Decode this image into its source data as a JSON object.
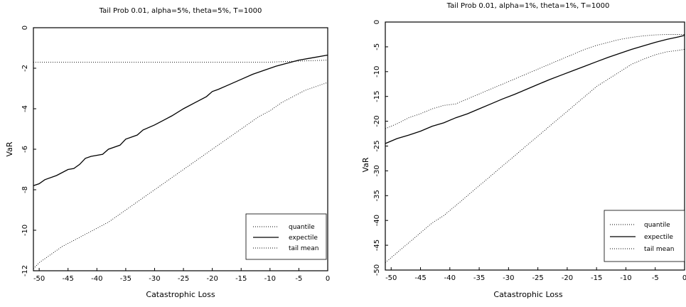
{
  "chart_data": [
    {
      "type": "line",
      "title": "Tail Prob 0.01, alpha=5%, theta=5%, T=1000",
      "xlabel": "Catastrophic Loss",
      "ylabel": "VaR",
      "xlim": [
        -51,
        0
      ],
      "ylim": [
        -12,
        0
      ],
      "xticks": [
        "-50",
        "-45",
        "-40",
        "-35",
        "-30",
        "-25",
        "-20",
        "-15",
        "-10",
        "-5",
        "0"
      ],
      "yticks": [
        "0",
        "-2",
        "-4",
        "-6",
        "-8",
        "-10",
        "-12"
      ],
      "legend": {
        "position": "bottom-right",
        "entries": [
          "quantile",
          "expectile",
          "tail mean"
        ]
      },
      "series": [
        {
          "name": "quantile",
          "style": "dotted",
          "x": [
            -51,
            -45,
            -40,
            -35,
            -30,
            -25,
            -20,
            -15,
            -10,
            -5,
            0
          ],
          "y": [
            -1.7,
            -1.7,
            -1.7,
            -1.7,
            -1.7,
            -1.7,
            -1.7,
            -1.7,
            -1.7,
            -1.65,
            -1.6
          ]
        },
        {
          "name": "expectile",
          "style": "solid",
          "x": [
            -51,
            -50,
            -49,
            -47,
            -45,
            -44,
            -43,
            -42,
            -41,
            -39,
            -38,
            -36,
            -35,
            -33,
            -32,
            -30,
            -28,
            -27,
            -25,
            -23,
            -21,
            -20,
            -19,
            -17,
            -15,
            -13,
            -11,
            -9,
            -7,
            -5,
            -3,
            0
          ],
          "y": [
            -7.8,
            -7.7,
            -7.5,
            -7.3,
            -7.0,
            -6.95,
            -6.75,
            -6.45,
            -6.35,
            -6.25,
            -6.0,
            -5.8,
            -5.5,
            -5.3,
            -5.05,
            -4.8,
            -4.5,
            -4.35,
            -4.0,
            -3.7,
            -3.4,
            -3.15,
            -3.05,
            -2.8,
            -2.55,
            -2.3,
            -2.1,
            -1.9,
            -1.75,
            -1.6,
            -1.5,
            -1.35
          ]
        },
        {
          "name": "tail mean",
          "style": "dotted",
          "x": [
            -51,
            -50,
            -48,
            -46,
            -44,
            -42,
            -40,
            -38,
            -36,
            -34,
            -32,
            -30,
            -28,
            -26,
            -24,
            -22,
            -20,
            -18,
            -16,
            -14,
            -12,
            -10,
            -8,
            -6,
            -4,
            -2,
            0
          ],
          "y": [
            -11.9,
            -11.6,
            -11.2,
            -10.8,
            -10.5,
            -10.2,
            -9.9,
            -9.6,
            -9.2,
            -8.8,
            -8.4,
            -8.0,
            -7.6,
            -7.2,
            -6.8,
            -6.4,
            -6.0,
            -5.6,
            -5.2,
            -4.8,
            -4.4,
            -4.1,
            -3.7,
            -3.4,
            -3.1,
            -2.9,
            -2.7
          ]
        }
      ]
    },
    {
      "type": "line",
      "title": "Tail Prob 0.01, alpha=1%, theta=1%, T=1000",
      "xlabel": "Catastrophic Loss",
      "ylabel": "VaR",
      "xlim": [
        -51,
        0
      ],
      "ylim": [
        -50,
        0
      ],
      "xticks": [
        "-50",
        "-45",
        "-40",
        "-35",
        "-30",
        "-25",
        "-20",
        "-15",
        "-10",
        "-5",
        "0"
      ],
      "yticks": [
        "0",
        "-5",
        "-10",
        "-15",
        "-20",
        "-25",
        "-30",
        "-35",
        "-40",
        "-45",
        "-50"
      ],
      "legend": {
        "position": "bottom-right",
        "entries": [
          "quantile",
          "expectile",
          "tail mean"
        ]
      },
      "series": [
        {
          "name": "quantile",
          "style": "dotted",
          "x": [
            -51,
            -49,
            -47,
            -45,
            -43,
            -41,
            -39,
            -37,
            -35,
            -33,
            -31,
            -29,
            -27,
            -25,
            -23,
            -21,
            -19,
            -17,
            -15,
            -13,
            -11,
            -9,
            -7,
            -5,
            -3,
            -1,
            0
          ],
          "y": [
            -21.5,
            -20.5,
            -19.3,
            -18.5,
            -17.5,
            -16.8,
            -16.5,
            -15.5,
            -14.5,
            -13.5,
            -12.5,
            -11.5,
            -10.5,
            -9.5,
            -8.5,
            -7.5,
            -6.5,
            -5.5,
            -4.7,
            -4.1,
            -3.5,
            -3.1,
            -2.8,
            -2.6,
            -2.5,
            -2.5,
            -2.5
          ]
        },
        {
          "name": "expectile",
          "style": "solid",
          "x": [
            -51,
            -49,
            -47,
            -45,
            -43,
            -41,
            -39,
            -37,
            -35,
            -33,
            -31,
            -29,
            -27,
            -25,
            -23,
            -21,
            -19,
            -17,
            -15,
            -13,
            -11,
            -9,
            -7,
            -5,
            -3,
            -1,
            0
          ],
          "y": [
            -24.5,
            -23.5,
            -22.8,
            -22.0,
            -21.0,
            -20.3,
            -19.3,
            -18.5,
            -17.5,
            -16.5,
            -15.5,
            -14.6,
            -13.6,
            -12.6,
            -11.6,
            -10.7,
            -9.8,
            -8.9,
            -8.0,
            -7.1,
            -6.3,
            -5.5,
            -4.8,
            -4.1,
            -3.5,
            -3.0,
            -2.7
          ]
        },
        {
          "name": "tail mean",
          "style": "dotted",
          "x": [
            -51,
            -49,
            -47,
            -45,
            -43,
            -41,
            -39,
            -37,
            -35,
            -33,
            -31,
            -29,
            -27,
            -25,
            -23,
            -21,
            -19,
            -17,
            -15,
            -13,
            -11,
            -9,
            -7,
            -5,
            -3,
            -1,
            0
          ],
          "y": [
            -48.5,
            -46.5,
            -44.5,
            -42.5,
            -40.5,
            -39.0,
            -37.0,
            -35.0,
            -33.0,
            -31.0,
            -29.0,
            -27.0,
            -25.0,
            -23.0,
            -21.0,
            -19.0,
            -17.0,
            -15.0,
            -13.0,
            -11.5,
            -10.0,
            -8.5,
            -7.5,
            -6.6,
            -6.0,
            -5.7,
            -5.5
          ]
        }
      ]
    }
  ]
}
